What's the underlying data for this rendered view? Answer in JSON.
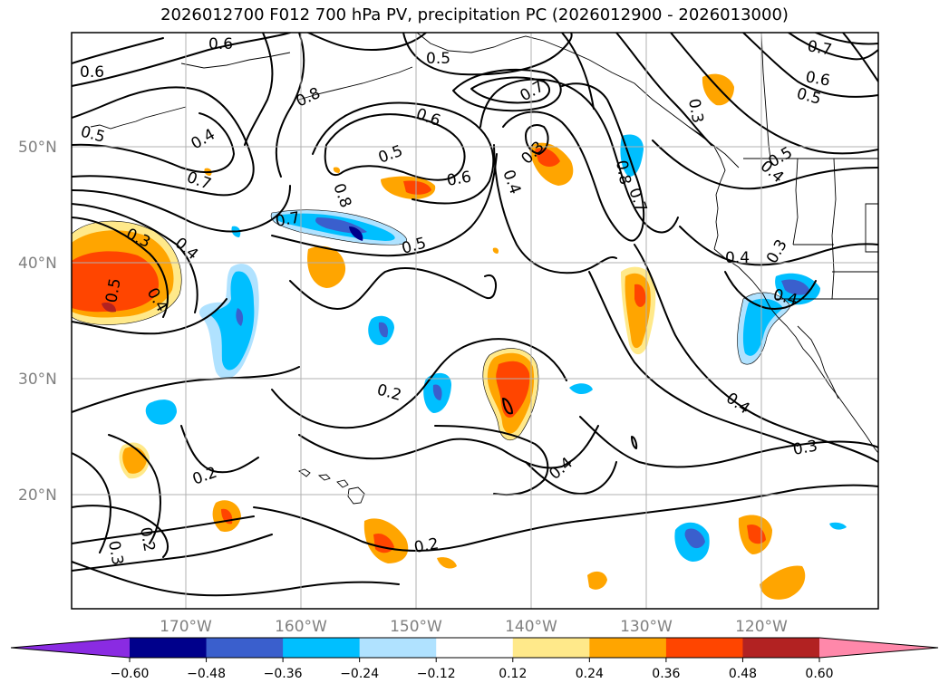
{
  "title": "2026012700 F012 700 hPa PV, precipitation PC (2026012900 - 2026013000)",
  "lat_labels": [
    "50°N",
    "40°N",
    "30°N",
    "20°N"
  ],
  "lon_labels": [
    "170°W",
    "160°W",
    "150°W",
    "140°W",
    "130°W",
    "120°W"
  ],
  "colorbar": {
    "ticks": [
      "−0.60",
      "−0.48",
      "−0.36",
      "−0.24",
      "−0.12",
      "0.12",
      "0.24",
      "0.36",
      "0.48",
      "0.60"
    ],
    "colors": [
      "#8a2be2",
      "#00008b",
      "#3a5fcd",
      "#00bfff",
      "#b0e2ff",
      "#ffffff",
      "#ffe98a",
      "#ffa500",
      "#ff4500",
      "#b22222",
      "#ff88aa"
    ]
  },
  "contour_labels": [
    {
      "text": "0.6",
      "a": ""
    },
    {
      "text": "0.6"
    },
    {
      "text": "0.5"
    },
    {
      "text": "0.4"
    },
    {
      "text": "0.7"
    },
    {
      "text": "0.3"
    },
    {
      "text": "0.4"
    },
    {
      "text": "0.5"
    },
    {
      "text": "0.4"
    },
    {
      "text": "0.8"
    },
    {
      "text": "0.5"
    },
    {
      "text": "0.8"
    },
    {
      "text": "0.7"
    },
    {
      "text": "0.5"
    },
    {
      "text": "0.6"
    },
    {
      "text": "0.6"
    },
    {
      "text": "0.5"
    },
    {
      "text": "0.7"
    },
    {
      "text": "0.3"
    },
    {
      "text": "0.4"
    },
    {
      "text": "0.8"
    },
    {
      "text": "0.7"
    },
    {
      "text": "0.3"
    },
    {
      "text": "0.7"
    },
    {
      "text": "0.6"
    },
    {
      "text": "0.5"
    },
    {
      "text": "0.4"
    },
    {
      "text": "0.5"
    },
    {
      "text": "0.4"
    },
    {
      "text": "0.3"
    },
    {
      "text": "0.4"
    },
    {
      "text": "0.2"
    },
    {
      "text": "0.4"
    },
    {
      "text": "0.4"
    },
    {
      "text": "0.3"
    },
    {
      "text": "0.2"
    },
    {
      "text": "0.2"
    },
    {
      "text": "0.2"
    },
    {
      "text": "0.3"
    }
  ]
}
